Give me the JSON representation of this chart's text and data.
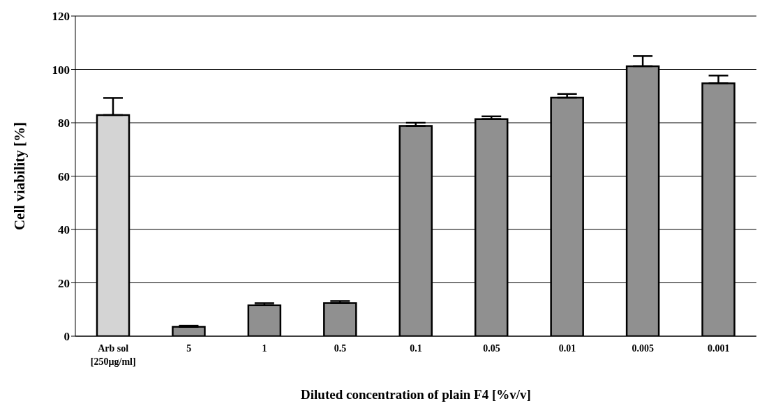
{
  "chart_data": {
    "type": "bar",
    "xlabel": "Diluted concentration of plain F4 [%v/v]",
    "ylabel": "Cell viability [%]",
    "categories": [
      "Arb sol\n[250µg/ml]",
      "5",
      "1",
      "0.5",
      "0.1",
      "0.05",
      "0.01",
      "0.005",
      "0.001"
    ],
    "values": [
      82.9,
      3.5,
      11.6,
      12.4,
      78.8,
      81.4,
      89.4,
      101.2,
      94.8
    ],
    "errors": [
      [
        82.9,
        89.3
      ],
      [
        3.5,
        3.9
      ],
      [
        11.6,
        12.4
      ],
      [
        12.4,
        13.2
      ],
      [
        78.8,
        80.0
      ],
      [
        81.4,
        82.4
      ],
      [
        89.4,
        90.8
      ],
      [
        101.2,
        105.0
      ],
      [
        94.8,
        97.7
      ]
    ],
    "colors": [
      "#d4d4d4",
      "#909090",
      "#909090",
      "#909090",
      "#909090",
      "#909090",
      "#909090",
      "#909090",
      "#909090"
    ],
    "ylim": [
      0,
      120
    ],
    "yticks": [
      0,
      20,
      40,
      60,
      80,
      100,
      120
    ],
    "grid": "y",
    "legend": false
  }
}
